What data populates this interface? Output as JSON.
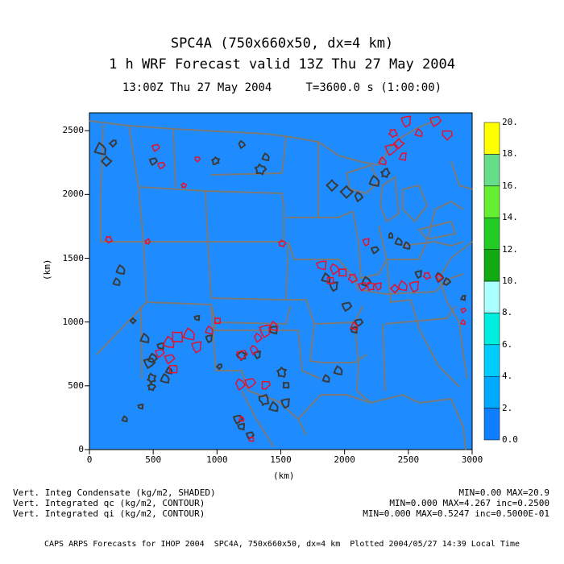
{
  "header": {
    "title_line1": "SPC4A (750x660x50, dx=4 km)",
    "title_line2": "1 h WRF Forecast valid 13Z Thu 27 May 2004",
    "title_line3": "13:00Z Thu 27 May 2004     T=3600.0 s (1:00:00)"
  },
  "axes": {
    "x_label": "(km)",
    "y_label": "(km)",
    "x_ticks": [
      "0",
      "500",
      "1000",
      "1500",
      "2000",
      "2500",
      "3000"
    ],
    "y_ticks": [
      "0",
      "500",
      "1000",
      "1500",
      "2000",
      "2500"
    ],
    "xlim": [
      0,
      3000
    ],
    "ylim": [
      0,
      2640
    ]
  },
  "colorbar": {
    "labels": [
      "0.0",
      "2.",
      "4.",
      "6.",
      "8.",
      "10.",
      "12.",
      "14.",
      "16.",
      "18.",
      "20."
    ],
    "colors": [
      "#0f7fff",
      "#00aaff",
      "#00ccff",
      "#00eedd",
      "#aaffff",
      "#11aa11",
      "#22cc22",
      "#66ee33",
      "#66dd88",
      "#ffff00",
      "#ffcc00"
    ]
  },
  "colors": {
    "background": "#1e8cff",
    "state_lines": "#7a7a7a",
    "qc_contour": "#3a3a3a",
    "qi_contour": "#e8102a"
  },
  "legend": {
    "line1_left": "Vert. Integ Condensate (kg/m2, SHADED)",
    "line1_right": "MIN=0.00 MAX=20.9",
    "line2_left": "Vert. Integrated qc (kg/m2, CONTOUR)",
    "line2_right": "MIN=0.000 MAX=4.267 inc=0.2500",
    "line3_left": "Vert. Integrated qi (kg/m2, CONTOUR)",
    "line3_right": "MIN=0.000 MAX=0.5247 inc=0.5000E-01"
  },
  "footer": "CAPS ARPS Forecasts for IHOP 2004  SPC4A, 750x660x50, dx=4 km  Plotted 2004/05/27 14:39 Local Time"
}
